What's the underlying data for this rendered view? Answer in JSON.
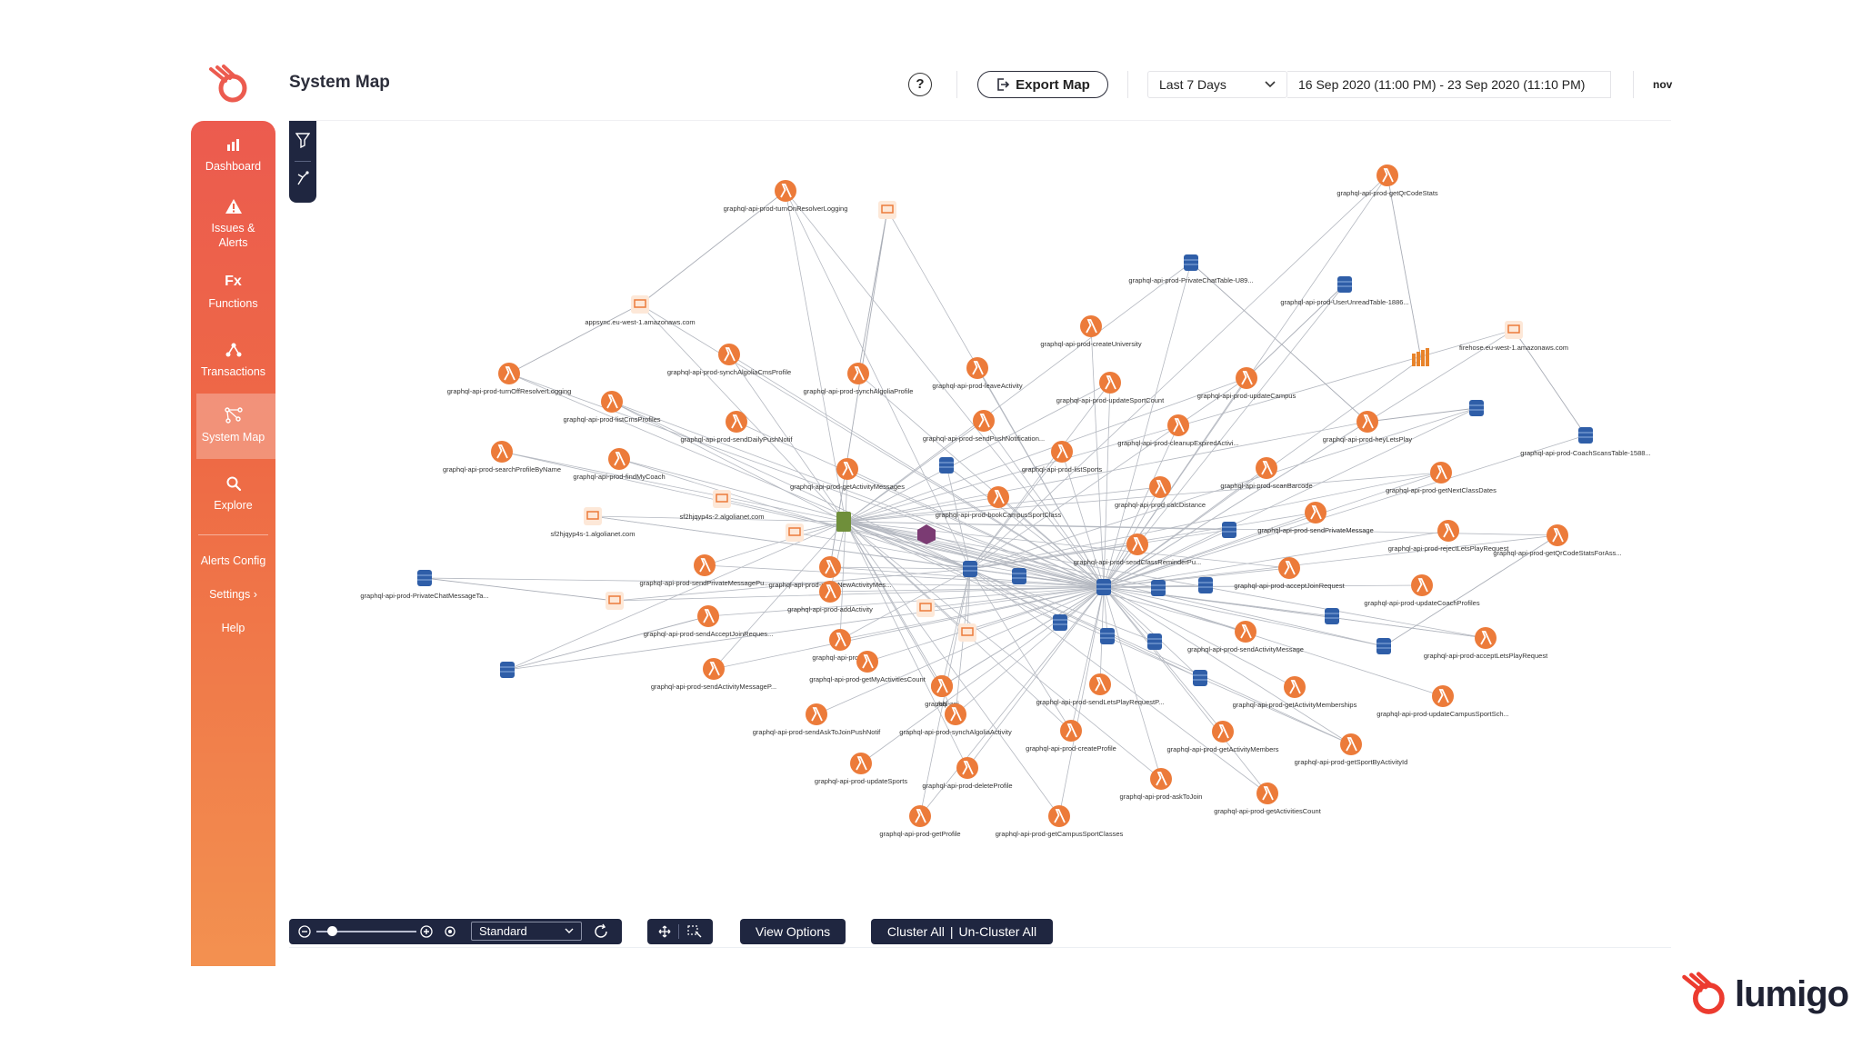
{
  "header": {
    "title": "System Map",
    "help_label": "?",
    "export_label": "Export Map",
    "range_label": "Last 7 Days",
    "date_range": "16 Sep 2020 (11:00 PM) - 23 Sep 2020 (11:10 PM)",
    "user": "nov"
  },
  "sidebar": {
    "items": [
      {
        "label": "Dashboard",
        "icon": "chart-icon"
      },
      {
        "label": "Issues &",
        "label2": "Alerts",
        "icon": "warning-icon"
      },
      {
        "label": "Functions",
        "icon_text": "Fx"
      },
      {
        "label": "Transactions",
        "icon": "nodes-icon"
      },
      {
        "label": "System Map",
        "icon": "map-icon",
        "active": true
      },
      {
        "label": "Explore",
        "icon": "search-icon"
      }
    ],
    "links": [
      "Alerts Config",
      "Settings",
      "Help"
    ],
    "settings_chevron": "›"
  },
  "map": {
    "labels": [
      "graphql-api-prod-turnOnResolverLogging",
      "appsync.eu-west-1.amazonaws.com",
      "graphql-api-prod-turnOffResolverLogging",
      "graphql-api-prod-synchAlgoliaCmsProfile",
      "graphql-api-prod-synchAlgoliaProfile",
      "graphql-api-prod-listCmsProfiles",
      "graphql-api-prod-sendDailyPushNotif",
      "graphql-api-prod-searchProfileByName",
      "graphql-api-prod-findMyCoach",
      "graphql-api-prod-getActivityMessages",
      "sf2hjqyp4s-2.algolianet.com",
      "sf2hjqyp4s-1.algolianet.com",
      "graphql-api-prod-leaveActivity",
      "graphql-api-prod-sendPushNotification...",
      "graphql-api-prod-listSports",
      "graphql-api-prod-bookCampusSportClass",
      "graphql-api-prod-createUniversity",
      "graphql-api-prod-updateSportCount",
      "graphql-api-prod-cleanupExpiredActivi...",
      "graphql-api-prod-calcDistance",
      "graphql-api-prod-sendClassReminderPu...",
      "graphql-api-prod-PrivateChatTable-U89...",
      "graphql-api-prod-UserUnreadTable-1886...",
      "graphql-api-prod-updateCampus",
      "graphql-api-prod-scanBarcode",
      "graphql-api-prod-heyLetsPlay",
      "graphql-api-prod-getQrCodeStats",
      "firehose.eu-west-1.amazonaws.com",
      "graphql-api-prod-CoachScansTable-1588...",
      "graphql-api-prod-getNextClassDates",
      "graphql-api-prod-rejectLetsPlayRequest",
      "graphql-api-prod-getQrCodeStatsForAss...",
      "graphql-api-prod-sendPrivateMessage",
      "graphql-api-prod-acceptJoinRequest",
      "graphql-api-prod-updateCoachProfiles",
      "graphql-api-prod-acceptLetsPlayRequest",
      "graphql-api-prod-PrivateChatMessageTa...",
      "graphql-api-prod-sendPrivateMessagePu...",
      "graphql-api-prod-notifyNewActivityMes...",
      "graphql-api-prod-addActivity",
      "graphql-api-prod-sendAcceptJoinReques...",
      "graphql-api-prod-c",
      "graphql-api-prod-getMyActivitiesCount",
      "graphql-api-prod-sendActivityMessageP...",
      "graphql-api",
      "rch",
      "graphql-api-prod-sendAskToJoinPushNotif",
      "graphql-api-prod-synchAlgoliaActivity",
      "graphql-api-prod-updateSports",
      "graphql-api-prod-deleteProfile",
      "graphql-api-prod-getProfile",
      "graphql-api-prod-getCampusSportClasses",
      "graphql-api-prod-sendLetsPlayRequestP...",
      "graphql-api-prod-createProfile",
      "graphql-api-prod-getActivityMembers",
      "graphql-api-prod-askToJoin",
      "graphql-api-prod-getActivitiesCount",
      "graphql-api-prod-sendActivityMessage",
      "graphql-api-prod-getActivityMemberships",
      "graphql-api-prod-getSportByActivityId",
      "graphql-api-prod-updateCampusSportSch..."
    ]
  },
  "bottom": {
    "zoom_mode": "Standard",
    "view_options": "View Options",
    "cluster_all": "Cluster All",
    "uncluster_all": "Un-Cluster All",
    "cluster_sep": "|"
  },
  "brand": {
    "name": "lumigo"
  },
  "colors": {
    "accent": "#ee6a45",
    "lambda": "#ec7b3a",
    "database": "#2f5ea8",
    "navy": "#1f2640"
  }
}
